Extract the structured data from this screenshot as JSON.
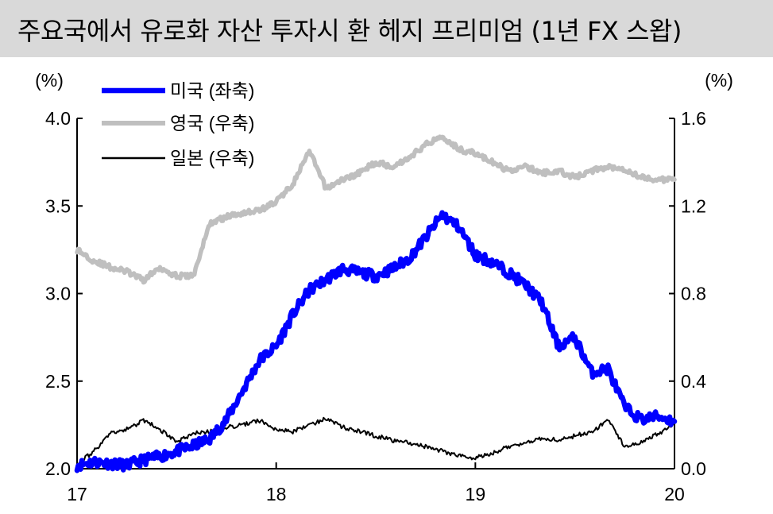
{
  "title": "주요국에서 유로화 자산 투자시 환 헤지 프리미엄 (1년 FX 스왑)",
  "chart_data": {
    "type": "line",
    "title": "주요국에서 유로화 자산 투자시 환 헤지 프리미엄 (1년 FX 스왑)",
    "x_ticks": [
      "17",
      "18",
      "19",
      "20"
    ],
    "xlim": [
      "2017-01-01",
      "2020-01-01"
    ],
    "y_left": {
      "unit_label": "(%)",
      "lim": [
        2.0,
        4.0
      ],
      "ticks": [
        "2.0",
        "2.5",
        "3.0",
        "3.5",
        "4.0"
      ]
    },
    "y_right": {
      "unit_label": "(%)",
      "lim": [
        0.0,
        1.6
      ],
      "ticks": [
        "0.0",
        "0.4",
        "0.8",
        "1.2",
        "1.6"
      ]
    },
    "legend_position": "top-left",
    "grid": false,
    "series": [
      {
        "name": "미국 (좌축)",
        "axis": "left",
        "color": "#0000ff",
        "points": [
          [
            "2017-01",
            2.02
          ],
          [
            "2017-02",
            2.04
          ],
          [
            "2017-03",
            2.03
          ],
          [
            "2017-04",
            2.02
          ],
          [
            "2017-05",
            2.05
          ],
          [
            "2017-06",
            2.07
          ],
          [
            "2017-07",
            2.1
          ],
          [
            "2017-08",
            2.13
          ],
          [
            "2017-09",
            2.17
          ],
          [
            "2017-10",
            2.28
          ],
          [
            "2017-11",
            2.45
          ],
          [
            "2017-12",
            2.62
          ],
          [
            "2018-01",
            2.7
          ],
          [
            "2018-02",
            2.88
          ],
          [
            "2018-03",
            3.02
          ],
          [
            "2018-04",
            3.08
          ],
          [
            "2018-05",
            3.14
          ],
          [
            "2018-06",
            3.12
          ],
          [
            "2018-07",
            3.1
          ],
          [
            "2018-08",
            3.14
          ],
          [
            "2018-09",
            3.2
          ],
          [
            "2018-10",
            3.32
          ],
          [
            "2018-11",
            3.45
          ],
          [
            "2018-12",
            3.38
          ],
          [
            "2019-01",
            3.22
          ],
          [
            "2019-02",
            3.18
          ],
          [
            "2019-03",
            3.12
          ],
          [
            "2019-04",
            3.05
          ],
          [
            "2019-05",
            2.95
          ],
          [
            "2019-06",
            2.7
          ],
          [
            "2019-07",
            2.75
          ],
          [
            "2019-08",
            2.55
          ],
          [
            "2019-09",
            2.57
          ],
          [
            "2019-10",
            2.35
          ],
          [
            "2019-11",
            2.28
          ],
          [
            "2019-12",
            2.3
          ],
          [
            "2020-01",
            2.27
          ]
        ]
      },
      {
        "name": "영국 (우축)",
        "axis": "right",
        "color": "#bfbfbf",
        "points": [
          [
            "2017-01",
            1.0
          ],
          [
            "2017-02",
            0.95
          ],
          [
            "2017-03",
            0.92
          ],
          [
            "2017-04",
            0.9
          ],
          [
            "2017-05",
            0.86
          ],
          [
            "2017-06",
            0.92
          ],
          [
            "2017-07",
            0.88
          ],
          [
            "2017-08",
            0.88
          ],
          [
            "2017-09",
            1.12
          ],
          [
            "2017-10",
            1.15
          ],
          [
            "2017-11",
            1.17
          ],
          [
            "2017-12",
            1.18
          ],
          [
            "2018-01",
            1.22
          ],
          [
            "2018-02",
            1.3
          ],
          [
            "2018-03",
            1.45
          ],
          [
            "2018-04",
            1.28
          ],
          [
            "2018-05",
            1.32
          ],
          [
            "2018-06",
            1.35
          ],
          [
            "2018-07",
            1.4
          ],
          [
            "2018-08",
            1.38
          ],
          [
            "2018-09",
            1.42
          ],
          [
            "2018-10",
            1.48
          ],
          [
            "2018-11",
            1.52
          ],
          [
            "2018-12",
            1.46
          ],
          [
            "2019-01",
            1.44
          ],
          [
            "2019-02",
            1.4
          ],
          [
            "2019-03",
            1.36
          ],
          [
            "2019-04",
            1.38
          ],
          [
            "2019-05",
            1.35
          ],
          [
            "2019-06",
            1.36
          ],
          [
            "2019-07",
            1.33
          ],
          [
            "2019-08",
            1.36
          ],
          [
            "2019-09",
            1.38
          ],
          [
            "2019-10",
            1.37
          ],
          [
            "2019-11",
            1.33
          ],
          [
            "2019-12",
            1.32
          ],
          [
            "2020-01",
            1.32
          ]
        ]
      },
      {
        "name": "일본 (우축)",
        "axis": "right",
        "color": "#000000",
        "points": [
          [
            "2017-01",
            0.02
          ],
          [
            "2017-02",
            0.08
          ],
          [
            "2017-03",
            0.16
          ],
          [
            "2017-04",
            0.18
          ],
          [
            "2017-05",
            0.22
          ],
          [
            "2017-06",
            0.18
          ],
          [
            "2017-07",
            0.12
          ],
          [
            "2017-08",
            0.16
          ],
          [
            "2017-09",
            0.17
          ],
          [
            "2017-10",
            0.19
          ],
          [
            "2017-11",
            0.2
          ],
          [
            "2017-12",
            0.22
          ],
          [
            "2018-01",
            0.18
          ],
          [
            "2018-02",
            0.17
          ],
          [
            "2018-03",
            0.2
          ],
          [
            "2018-04",
            0.23
          ],
          [
            "2018-05",
            0.19
          ],
          [
            "2018-06",
            0.17
          ],
          [
            "2018-07",
            0.15
          ],
          [
            "2018-08",
            0.13
          ],
          [
            "2018-09",
            0.12
          ],
          [
            "2018-10",
            0.1
          ],
          [
            "2018-11",
            0.08
          ],
          [
            "2018-12",
            0.06
          ],
          [
            "2019-01",
            0.05
          ],
          [
            "2019-02",
            0.07
          ],
          [
            "2019-03",
            0.1
          ],
          [
            "2019-04",
            0.12
          ],
          [
            "2019-05",
            0.14
          ],
          [
            "2019-06",
            0.13
          ],
          [
            "2019-07",
            0.15
          ],
          [
            "2019-08",
            0.17
          ],
          [
            "2019-09",
            0.22
          ],
          [
            "2019-10",
            0.1
          ],
          [
            "2019-11",
            0.12
          ],
          [
            "2019-12",
            0.16
          ],
          [
            "2020-01",
            0.2
          ]
        ]
      }
    ]
  }
}
